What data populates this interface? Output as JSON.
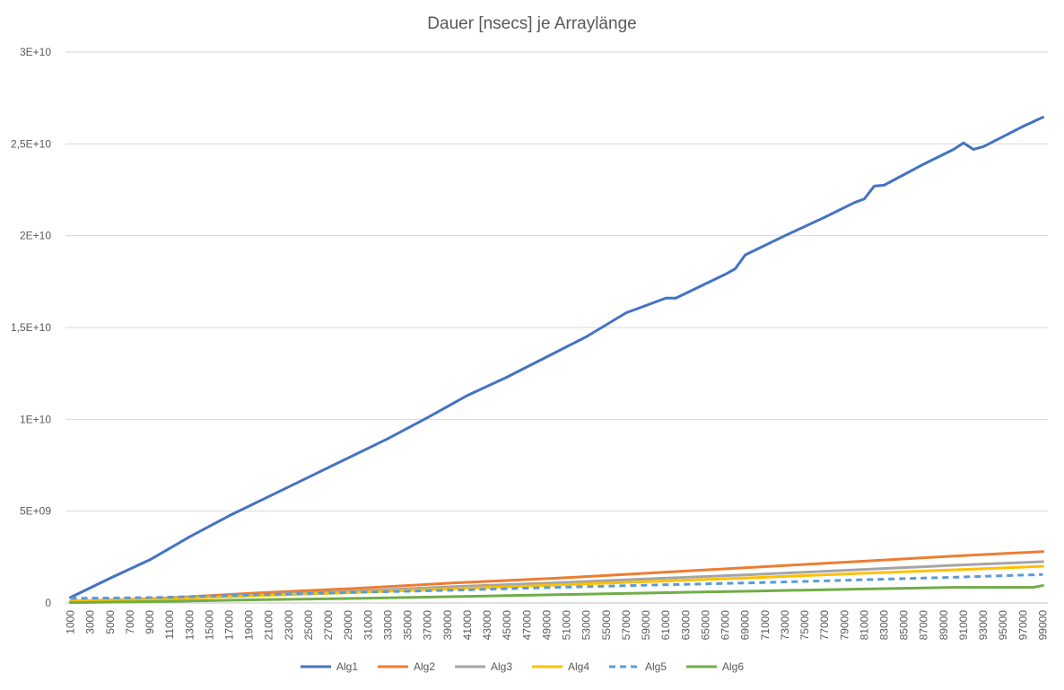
{
  "chart_data": {
    "type": "line",
    "title": "Dauer [nsecs] je Arraylänge",
    "xlabel": "",
    "ylabel": "",
    "ylim": [
      0,
      30000000000
    ],
    "y_tick_values": [
      0,
      5000000000,
      10000000000,
      15000000000,
      20000000000,
      25000000000,
      30000000000
    ],
    "y_tick_labels": [
      "0",
      "5E+09",
      "1E+10",
      "1,5E+10",
      "2E+10",
      "2,5E+10",
      "3E+10"
    ],
    "x_start": 1000,
    "x_end": 99000,
    "x_step": 1000,
    "x_tick_labels": [
      "1000",
      "3000",
      "5000",
      "7000",
      "9000",
      "11000",
      "13000",
      "15000",
      "17000",
      "19000",
      "21000",
      "23000",
      "25000",
      "27000",
      "29000",
      "31000",
      "33000",
      "35000",
      "37000",
      "39000",
      "41000",
      "43000",
      "45000",
      "47000",
      "49000",
      "51000",
      "53000",
      "55000",
      "57000",
      "59000",
      "61000",
      "63000",
      "65000",
      "67000",
      "69000",
      "71000",
      "73000",
      "75000",
      "77000",
      "79000",
      "81000",
      "83000",
      "85000",
      "87000",
      "89000",
      "91000",
      "93000",
      "95000",
      "97000",
      "99000"
    ],
    "grid": true,
    "legend_position": "bottom",
    "series": [
      {
        "name": "Alg1",
        "color": "#4472C4",
        "dash": "solid",
        "points": [
          [
            1000,
            300000000
          ],
          [
            5000,
            1350000000
          ],
          [
            9000,
            2350000000
          ],
          [
            13000,
            3600000000
          ],
          [
            17000,
            4750000000
          ],
          [
            21000,
            5800000000
          ],
          [
            25000,
            6850000000
          ],
          [
            29000,
            7900000000
          ],
          [
            33000,
            8950000000
          ],
          [
            37000,
            10100000000
          ],
          [
            41000,
            11300000000
          ],
          [
            45000,
            12300000000
          ],
          [
            49000,
            13400000000
          ],
          [
            53000,
            14500000000
          ],
          [
            57000,
            15800000000
          ],
          [
            60000,
            16400000000
          ],
          [
            61000,
            16600000000
          ],
          [
            62000,
            16600000000
          ],
          [
            67000,
            17900000000
          ],
          [
            68000,
            18200000000
          ],
          [
            69000,
            18950000000
          ],
          [
            73000,
            20000000000
          ],
          [
            77000,
            21000000000
          ],
          [
            80000,
            21800000000
          ],
          [
            81000,
            22000000000
          ],
          [
            82000,
            22700000000
          ],
          [
            83000,
            22750000000
          ],
          [
            87000,
            23900000000
          ],
          [
            90000,
            24700000000
          ],
          [
            91000,
            25050000000
          ],
          [
            92000,
            24700000000
          ],
          [
            93000,
            24850000000
          ],
          [
            95000,
            25400000000
          ],
          [
            97000,
            25950000000
          ],
          [
            99000,
            26450000000
          ]
        ]
      },
      {
        "name": "Alg2",
        "color": "#ED7D31",
        "dash": "solid",
        "points": [
          [
            1000,
            100000000
          ],
          [
            10000,
            250000000
          ],
          [
            20000,
            550000000
          ],
          [
            30000,
            800000000
          ],
          [
            40000,
            1100000000
          ],
          [
            50000,
            1350000000
          ],
          [
            60000,
            1650000000
          ],
          [
            70000,
            1950000000
          ],
          [
            80000,
            2250000000
          ],
          [
            90000,
            2550000000
          ],
          [
            99000,
            2800000000
          ]
        ]
      },
      {
        "name": "Alg3",
        "color": "#A5A5A5",
        "dash": "solid",
        "points": [
          [
            1000,
            100000000
          ],
          [
            10000,
            220000000
          ],
          [
            20000,
            450000000
          ],
          [
            30000,
            650000000
          ],
          [
            40000,
            900000000
          ],
          [
            50000,
            1100000000
          ],
          [
            60000,
            1330000000
          ],
          [
            70000,
            1550000000
          ],
          [
            80000,
            1800000000
          ],
          [
            90000,
            2050000000
          ],
          [
            99000,
            2250000000
          ]
        ]
      },
      {
        "name": "Alg4",
        "color": "#FFC000",
        "dash": "solid",
        "points": [
          [
            1000,
            100000000
          ],
          [
            10000,
            200000000
          ],
          [
            20000,
            400000000
          ],
          [
            30000,
            580000000
          ],
          [
            40000,
            780000000
          ],
          [
            50000,
            980000000
          ],
          [
            60000,
            1180000000
          ],
          [
            70000,
            1380000000
          ],
          [
            80000,
            1600000000
          ],
          [
            90000,
            1800000000
          ],
          [
            99000,
            2000000000
          ]
        ]
      },
      {
        "name": "Alg5",
        "color": "#5B9BD5",
        "dash": "dashed",
        "points": [
          [
            1000,
            250000000
          ],
          [
            10000,
            300000000
          ],
          [
            20000,
            450000000
          ],
          [
            30000,
            580000000
          ],
          [
            40000,
            700000000
          ],
          [
            50000,
            850000000
          ],
          [
            60000,
            980000000
          ],
          [
            70000,
            1100000000
          ],
          [
            80000,
            1250000000
          ],
          [
            90000,
            1400000000
          ],
          [
            99000,
            1550000000
          ]
        ]
      },
      {
        "name": "Alg6",
        "color": "#70AD47",
        "dash": "solid",
        "points": [
          [
            1000,
            20000000
          ],
          [
            10000,
            80000000
          ],
          [
            20000,
            180000000
          ],
          [
            30000,
            250000000
          ],
          [
            40000,
            350000000
          ],
          [
            50000,
            450000000
          ],
          [
            60000,
            550000000
          ],
          [
            70000,
            650000000
          ],
          [
            80000,
            750000000
          ],
          [
            90000,
            850000000
          ],
          [
            98000,
            850000000
          ],
          [
            99000,
            950000000
          ]
        ]
      }
    ]
  }
}
